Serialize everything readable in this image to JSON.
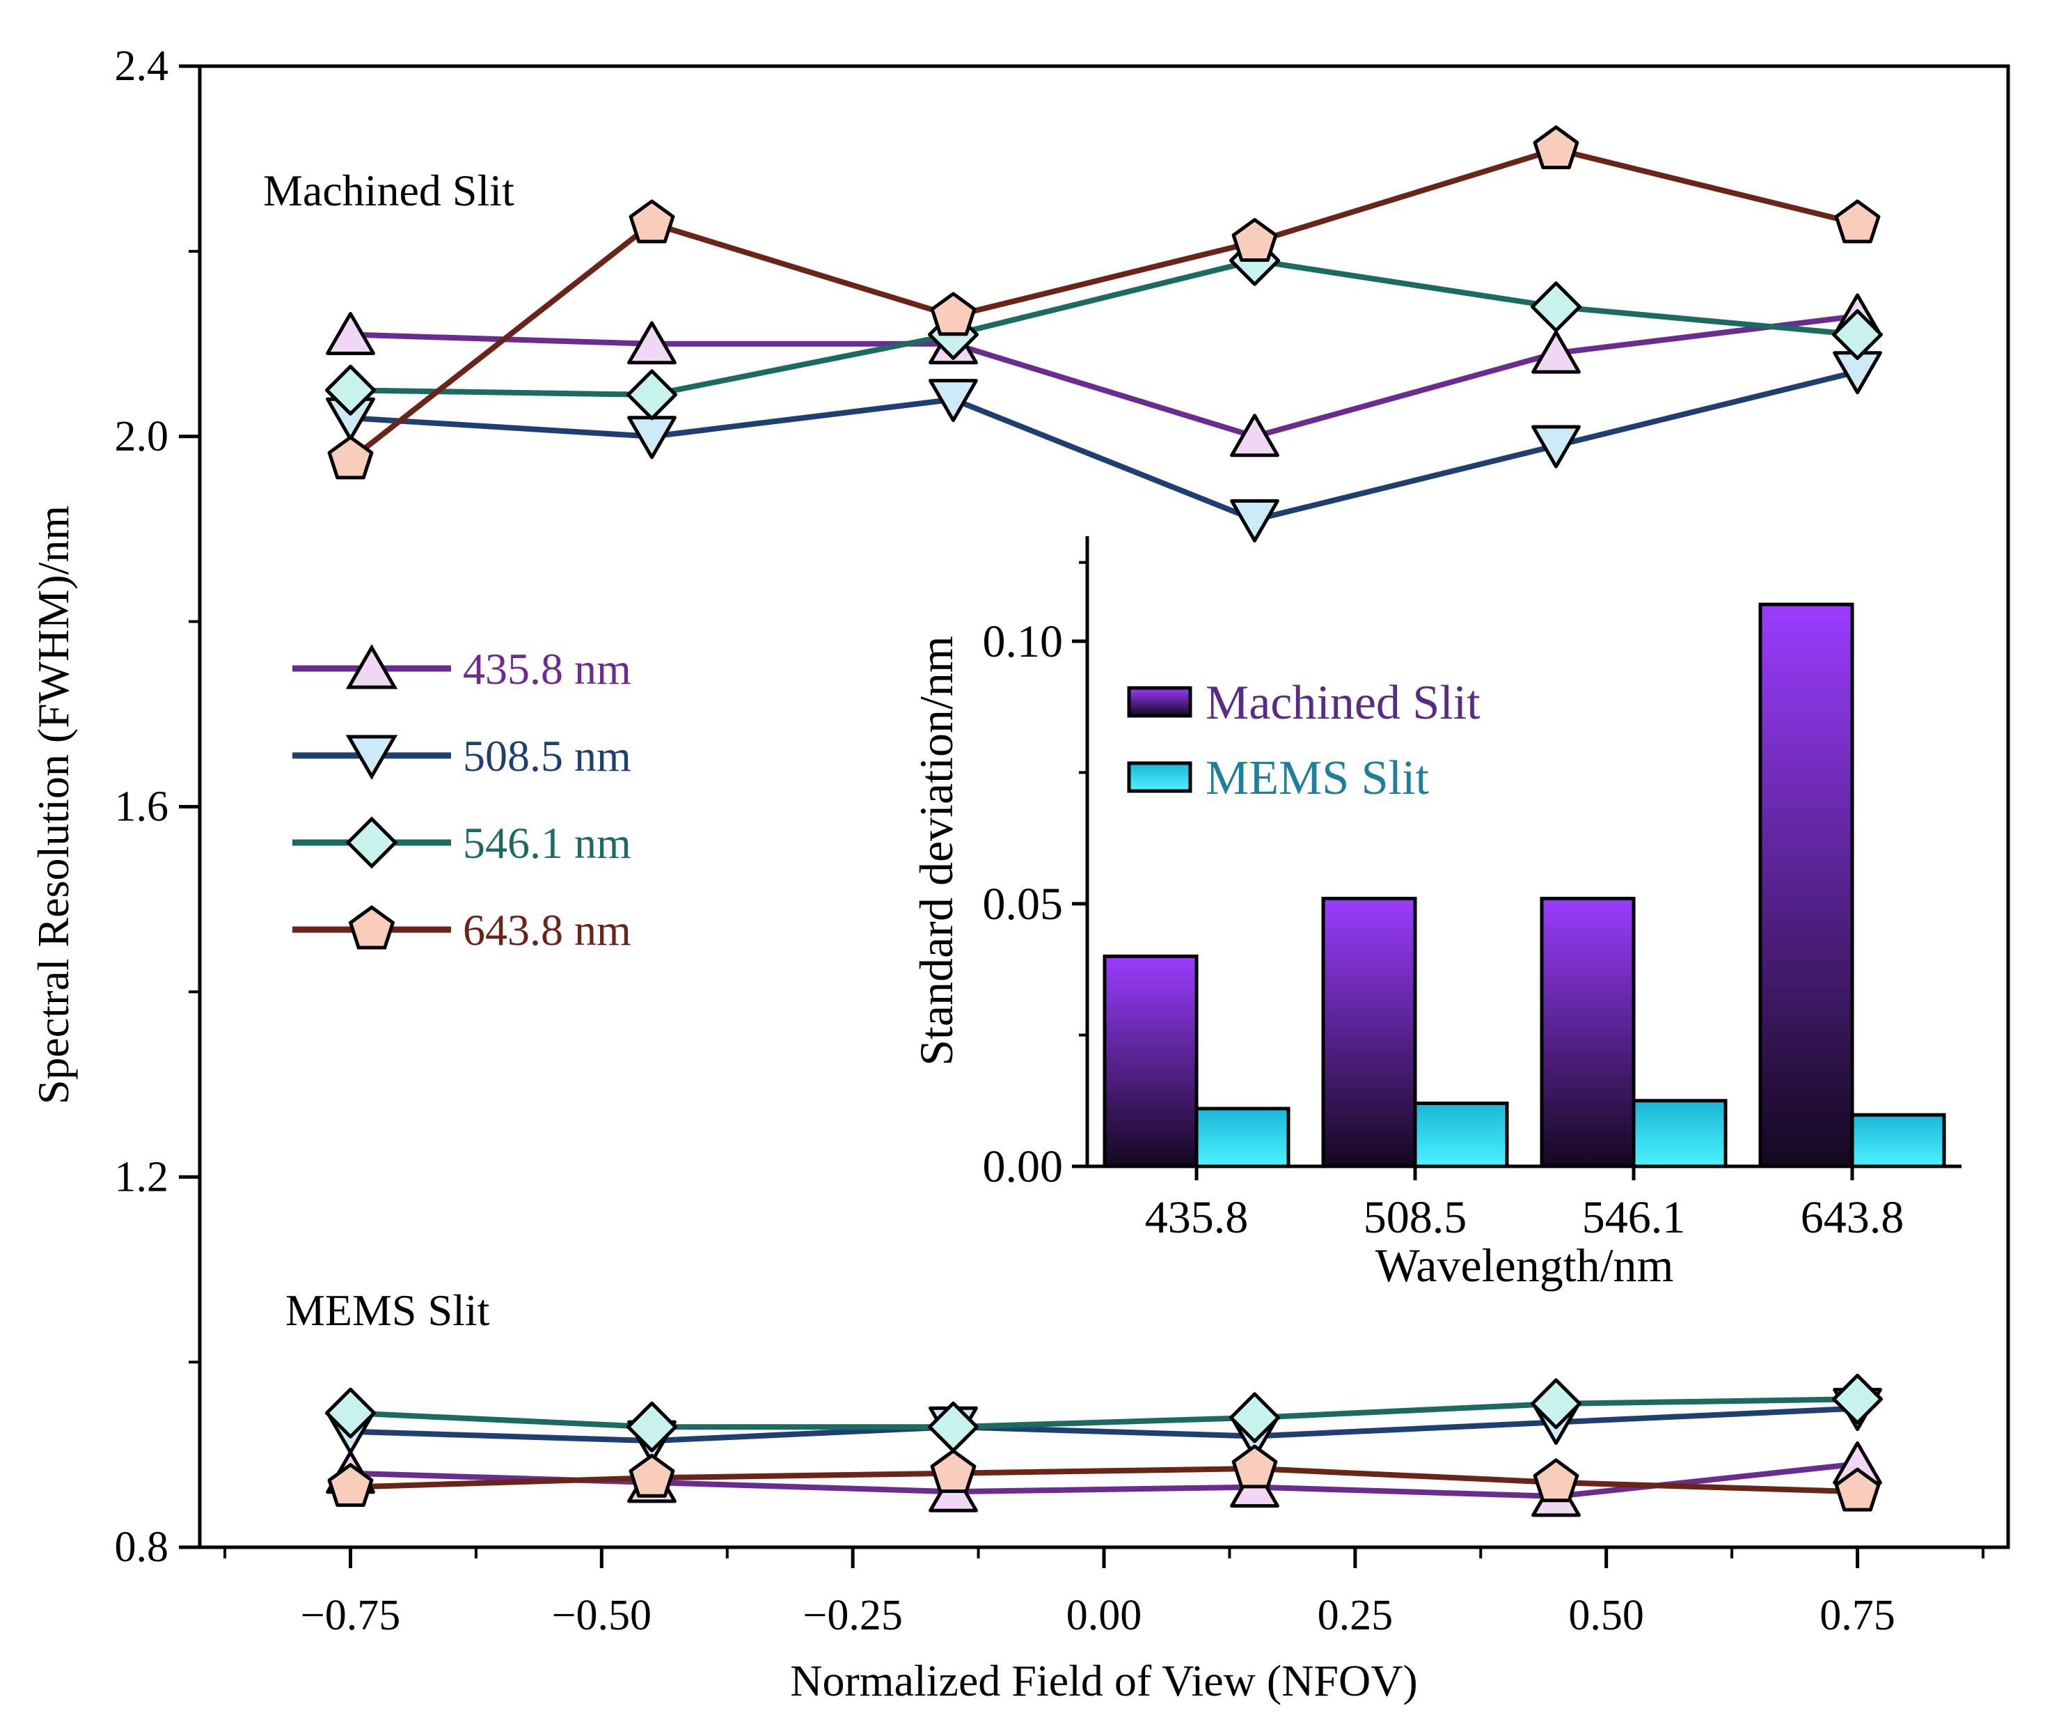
{
  "chart_data": [
    {
      "type": "line",
      "title": "",
      "xlabel": "Normalized Field of View (NFOV)",
      "ylabel": "Spectral Resolution (FWHM)/nm",
      "xlim": [
        -0.9,
        0.9
      ],
      "ylim": [
        0.8,
        2.4
      ],
      "xticks": [
        -0.75,
        -0.5,
        -0.25,
        0.0,
        0.25,
        0.5,
        0.75
      ],
      "xtick_labels": [
        "−0.75",
        "−0.50",
        "−0.25",
        "0.00",
        "0.25",
        "0.50",
        "0.75"
      ],
      "yticks": [
        0.8,
        1.2,
        1.6,
        2.0,
        2.4
      ],
      "ytick_labels": [
        "0.8",
        "1.2",
        "1.6",
        "2.0",
        "2.4"
      ],
      "x": [
        -0.75,
        -0.45,
        -0.15,
        0.15,
        0.45,
        0.75
      ],
      "group_labels": {
        "machined": "Machined Slit",
        "mems": "MEMS Slit"
      },
      "legend_position": "left-middle",
      "series": [
        {
          "name": "435.8 nm",
          "color": "#6a2c91",
          "marker": "triangle-up",
          "marker_fill": "#f0d8f4",
          "machined": [
            2.11,
            2.1,
            2.1,
            2.0,
            2.09,
            2.13
          ],
          "mems": [
            0.88,
            0.87,
            0.86,
            0.865,
            0.855,
            0.89
          ]
        },
        {
          "name": "508.5 nm",
          "color": "#1f3f73",
          "marker": "triangle-down",
          "marker_fill": "#cdeaf8",
          "machined": [
            2.02,
            2.0,
            2.04,
            1.91,
            1.99,
            2.07
          ],
          "mems": [
            0.925,
            0.915,
            0.93,
            0.92,
            0.935,
            0.95
          ]
        },
        {
          "name": "546.1 nm",
          "color": "#1c6b60",
          "marker": "diamond",
          "marker_fill": "#c8f2ee",
          "machined": [
            2.05,
            2.045,
            2.11,
            2.19,
            2.14,
            2.11
          ],
          "mems": [
            0.945,
            0.93,
            0.93,
            0.94,
            0.955,
            0.96
          ]
        },
        {
          "name": "643.8 nm",
          "color": "#6b2418",
          "marker": "pentagon",
          "marker_fill": "#f9cdbc",
          "machined": [
            1.975,
            2.23,
            2.13,
            2.21,
            2.31,
            2.23
          ],
          "mems": [
            0.865,
            0.875,
            0.88,
            0.885,
            0.87,
            0.86
          ]
        }
      ]
    },
    {
      "type": "bar",
      "title": "",
      "xlabel": "Wavelength/nm",
      "ylabel": "Standard deviation/nm",
      "categories": [
        "435.8",
        "508.5",
        "546.1",
        "643.8"
      ],
      "ylim": [
        0,
        0.12
      ],
      "yticks": [
        0.0,
        0.05,
        0.1
      ],
      "ytick_labels": [
        "0.00",
        "0.05",
        "0.10"
      ],
      "legend_position": "top-left",
      "series": [
        {
          "name": "Machined Slit",
          "color_top": "#9b3cff",
          "color_bottom": "#14081f",
          "values": [
            0.04,
            0.051,
            0.051,
            0.107
          ]
        },
        {
          "name": "MEMS Slit",
          "color_top": "#1ab6d8",
          "color_bottom": "#4df3ff",
          "values": [
            0.011,
            0.012,
            0.0125,
            0.0098
          ]
        }
      ]
    }
  ]
}
